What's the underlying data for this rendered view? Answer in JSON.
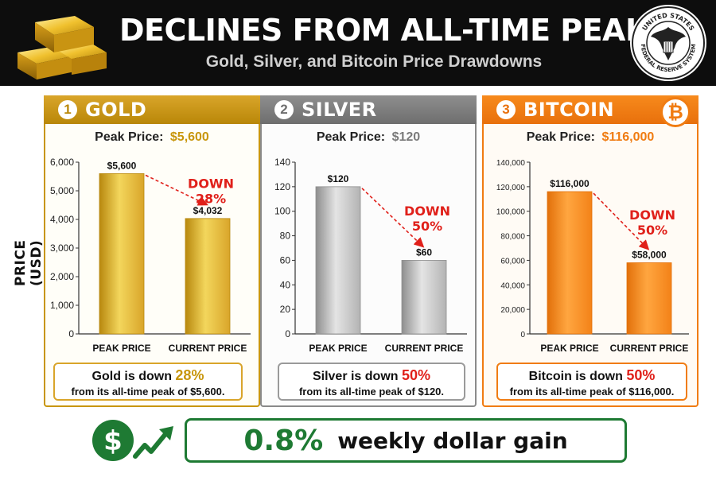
{
  "header": {
    "title": "DECLINES FROM ALL-TIME PEAKS",
    "subtitle": "Gold, Silver, and Bitcoin Price Drawdowns",
    "seal_text": "UNITED STATES · FEDERAL RESERVE SYSTEM"
  },
  "y_axis_title": "PRICE (USD)",
  "panels": {
    "gold": {
      "number": "1",
      "name": "GOLD",
      "peak_label": "Peak Price:",
      "peak_value": "$5,600",
      "summary_prefix": "Gold is down",
      "summary_pct": "28%",
      "summary_line2": "from its all-time peak of $5,600."
    },
    "silver": {
      "number": "2",
      "name": "SILVER",
      "peak_label": "Peak Price:",
      "peak_value": "$120",
      "summary_prefix": "Silver is down",
      "summary_pct": "50%",
      "summary_line2": "from its all-time peak of $120."
    },
    "bitcoin": {
      "number": "3",
      "name": "BITCOIN",
      "peak_label": "Peak Price:",
      "peak_value": "$116,000",
      "summary_prefix": "Bitcoin is down",
      "summary_pct": "50%",
      "summary_line2": "from its all-time peak of $116,000.",
      "logo_icon": "bitcoin-icon",
      "logo_glyph": "₿"
    }
  },
  "bottom": {
    "gain_pct": "0.8%",
    "gain_text": "weekly dollar gain",
    "dollar_glyph": "$"
  },
  "colors": {
    "gold": "#d9a52a",
    "silver": "#b3b3b3",
    "bitcoin": "#f38218",
    "down_red": "#e0201a",
    "green": "#1e7a33",
    "header_bg": "#0d0d0d"
  },
  "chart_data": [
    {
      "type": "bar",
      "categories": [
        "PEAK PRICE",
        "CURRENT PRICE"
      ],
      "values": [
        5600,
        4032
      ],
      "value_labels": [
        "$5,600",
        "$4,032"
      ],
      "ylim": [
        0,
        6000
      ],
      "yticks": [
        0,
        1000,
        2000,
        3000,
        4000,
        5000,
        6000
      ],
      "ytick_labels": [
        "0",
        "1,000",
        "2,000",
        "3,000",
        "4,000",
        "5,000",
        "6,000"
      ],
      "annotation": [
        "DOWN",
        "28%"
      ],
      "ylabel": "PRICE (USD)"
    },
    {
      "type": "bar",
      "categories": [
        "PEAK PRICE",
        "CURRENT PRICE"
      ],
      "values": [
        120,
        60
      ],
      "value_labels": [
        "$120",
        "$60"
      ],
      "ylim": [
        0,
        140
      ],
      "yticks": [
        0,
        20,
        40,
        60,
        80,
        100,
        120,
        140
      ],
      "ytick_labels": [
        "0",
        "20",
        "40",
        "60",
        "80",
        "100",
        "120",
        "140"
      ],
      "annotation": [
        "DOWN",
        "50%"
      ]
    },
    {
      "type": "bar",
      "categories": [
        "PEAK PRICE",
        "CURRENT PRICE"
      ],
      "values": [
        116000,
        58000
      ],
      "value_labels": [
        "$116,000",
        "$58,000"
      ],
      "ylim": [
        0,
        140000
      ],
      "yticks": [
        0,
        20000,
        40000,
        60000,
        80000,
        100000,
        120000,
        140000
      ],
      "ytick_labels": [
        "0",
        "20,000",
        "40,000",
        "60,000",
        "80,000",
        "100,000",
        "120,000",
        "140,000"
      ],
      "annotation": [
        "DOWN",
        "50%"
      ]
    }
  ]
}
